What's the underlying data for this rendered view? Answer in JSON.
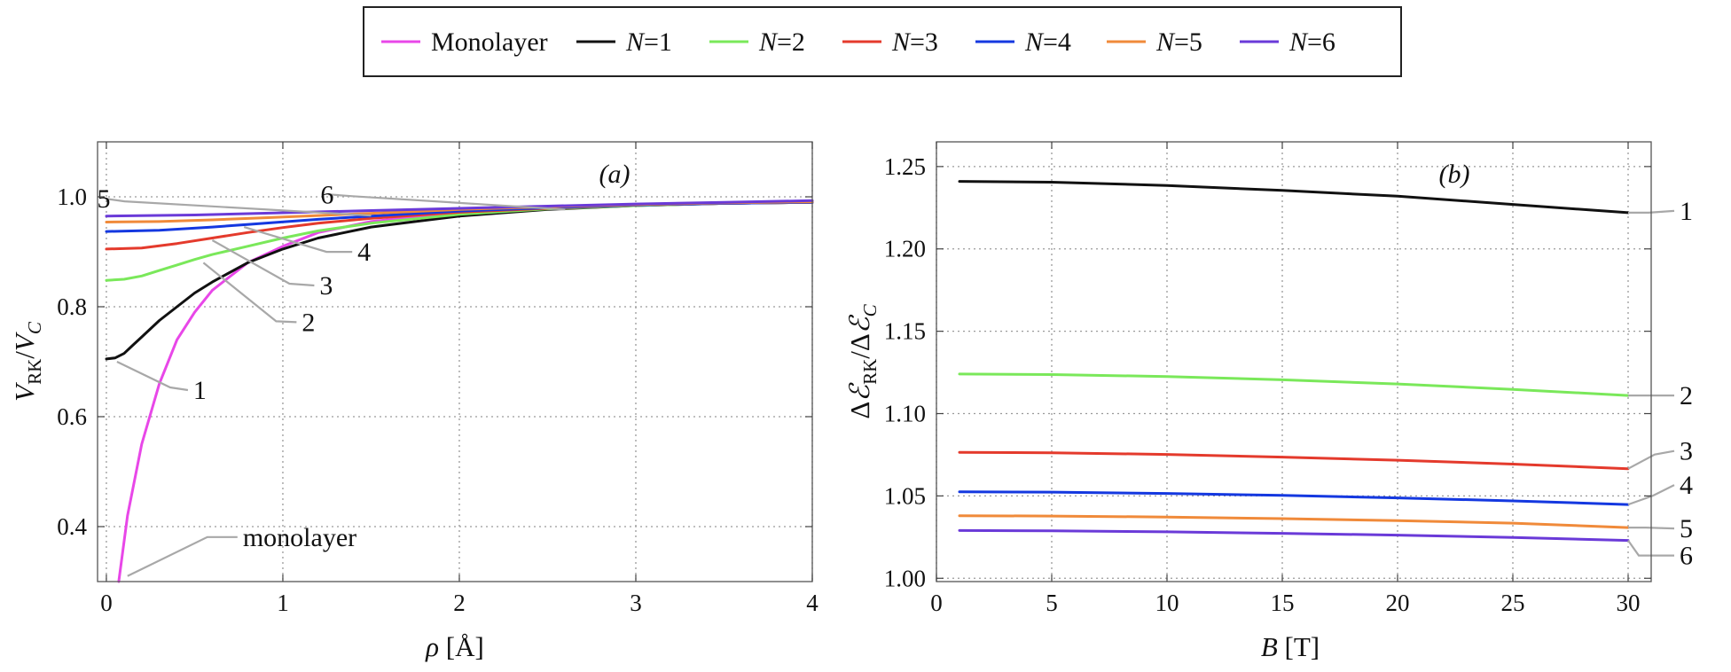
{
  "legend": {
    "entries": [
      {
        "key": "mono",
        "label": "Monolayer",
        "italic": false,
        "color": "#e847e8"
      },
      {
        "key": "1",
        "label": "N=1",
        "italic": true,
        "color": "#111111"
      },
      {
        "key": "2",
        "label": "N=2",
        "italic": true,
        "color": "#7ae85a"
      },
      {
        "key": "3",
        "label": "N=3",
        "italic": true,
        "color": "#e43a2c"
      },
      {
        "key": "4",
        "label": "N=4",
        "italic": true,
        "color": "#1438e0"
      },
      {
        "key": "5",
        "label": "N=5",
        "italic": true,
        "color": "#f08a3a"
      },
      {
        "key": "6",
        "label": "N=6",
        "italic": true,
        "color": "#6a3ad8"
      }
    ]
  },
  "chart_data": [
    {
      "panel": "a",
      "panel_label": "(a)",
      "type": "line",
      "xlabel": "ρ [Å]",
      "ylabel": "V_RK/V_C",
      "ylabel_parts": {
        "v1": "V",
        "s1": "RK",
        "slash": "/",
        "v2": "V",
        "s2": "C"
      },
      "xlim": [
        -0.05,
        4.0
      ],
      "ylim": [
        0.3,
        1.1
      ],
      "x_ticks": [
        0,
        1,
        2,
        3,
        4
      ],
      "x_tick_labels": [
        "0",
        "1",
        "2",
        "3",
        "4"
      ],
      "y_ticks": [
        0.4,
        0.6,
        0.8,
        1.0
      ],
      "y_tick_labels": [
        "0.4",
        "0.6",
        "0.8",
        "1.0"
      ],
      "grid": true,
      "series": [
        {
          "key": "mono",
          "name": "Monolayer",
          "color": "#e847e8",
          "x": [
            0.07,
            0.12,
            0.2,
            0.3,
            0.4,
            0.5,
            0.6,
            0.8,
            1.0,
            1.2,
            1.5,
            2.0,
            2.5,
            3.0,
            3.5,
            4.0
          ],
          "y": [
            0.3,
            0.42,
            0.55,
            0.66,
            0.74,
            0.79,
            0.83,
            0.88,
            0.91,
            0.935,
            0.955,
            0.972,
            0.98,
            0.985,
            0.988,
            0.99
          ]
        },
        {
          "key": "1",
          "name": "N=1",
          "color": "#111111",
          "x": [
            0.0,
            0.05,
            0.1,
            0.15,
            0.2,
            0.3,
            0.4,
            0.5,
            0.6,
            0.8,
            1.0,
            1.2,
            1.5,
            2.0,
            2.5,
            3.0,
            3.5,
            4.0
          ],
          "y": [
            0.705,
            0.707,
            0.715,
            0.73,
            0.745,
            0.775,
            0.8,
            0.825,
            0.845,
            0.88,
            0.905,
            0.925,
            0.945,
            0.965,
            0.977,
            0.984,
            0.988,
            0.99
          ]
        },
        {
          "key": "2",
          "name": "N=2",
          "color": "#7ae85a",
          "x": [
            0.0,
            0.1,
            0.2,
            0.3,
            0.4,
            0.5,
            0.6,
            0.8,
            1.0,
            1.2,
            1.5,
            2.0,
            2.5,
            3.0,
            3.5,
            4.0
          ],
          "y": [
            0.848,
            0.85,
            0.856,
            0.866,
            0.876,
            0.886,
            0.895,
            0.91,
            0.925,
            0.938,
            0.952,
            0.968,
            0.978,
            0.984,
            0.988,
            0.99
          ]
        },
        {
          "key": "3",
          "name": "N=3",
          "color": "#e43a2c",
          "x": [
            0.0,
            0.2,
            0.4,
            0.6,
            0.8,
            1.0,
            1.2,
            1.5,
            2.0,
            2.5,
            3.0,
            3.5,
            4.0
          ],
          "y": [
            0.905,
            0.907,
            0.915,
            0.925,
            0.935,
            0.944,
            0.952,
            0.961,
            0.972,
            0.979,
            0.985,
            0.988,
            0.99
          ]
        },
        {
          "key": "4",
          "name": "N=4",
          "color": "#1438e0",
          "x": [
            0.0,
            0.3,
            0.6,
            0.9,
            1.2,
            1.5,
            2.0,
            2.5,
            3.0,
            3.5,
            4.0
          ],
          "y": [
            0.937,
            0.939,
            0.945,
            0.952,
            0.959,
            0.965,
            0.974,
            0.98,
            0.985,
            0.988,
            0.99
          ]
        },
        {
          "key": "5",
          "name": "N=5",
          "color": "#f08a3a",
          "x": [
            0.0,
            0.3,
            0.6,
            0.9,
            1.2,
            1.5,
            2.0,
            2.5,
            3.0,
            3.5,
            4.0
          ],
          "y": [
            0.954,
            0.955,
            0.958,
            0.962,
            0.966,
            0.97,
            0.977,
            0.982,
            0.986,
            0.989,
            0.991
          ]
        },
        {
          "key": "6",
          "name": "N=6",
          "color": "#6a3ad8",
          "x": [
            0.0,
            0.5,
            1.0,
            1.5,
            2.0,
            2.5,
            3.0,
            3.5,
            4.0
          ],
          "y": [
            0.965,
            0.967,
            0.971,
            0.975,
            0.979,
            0.983,
            0.987,
            0.99,
            0.993
          ]
        }
      ],
      "annotations": [
        {
          "text": "monolayer",
          "series": "mono",
          "at": [
            0.12,
            0.31
          ]
        },
        {
          "text": "1",
          "series": "1",
          "at": [
            0.06,
            0.7
          ]
        },
        {
          "text": "2",
          "series": "2",
          "at": [
            0.55,
            0.88
          ]
        },
        {
          "text": "3",
          "series": "3",
          "at": [
            0.6,
            0.921
          ]
        },
        {
          "text": "4",
          "series": "4",
          "at": [
            0.78,
            0.945
          ]
        },
        {
          "text": "5",
          "series": "5",
          "at": [
            1.5,
            0.966
          ]
        },
        {
          "text": "6",
          "series": "6",
          "at": [
            2.6,
            0.977
          ]
        }
      ]
    },
    {
      "panel": "b",
      "panel_label": "(b)",
      "type": "line",
      "xlabel": "B [T]",
      "ylabel": "ΔE_RK/ΔE_C",
      "ylabel_parts": {
        "d1": "Δ",
        "v1": "ℰ",
        "s1": "RK",
        "slash": "/",
        "d2": "Δ",
        "v2": "ℰ",
        "s2": "C"
      },
      "xlim": [
        0,
        31
      ],
      "ylim": [
        0.998,
        1.265
      ],
      "x_ticks": [
        0,
        5,
        10,
        15,
        20,
        25,
        30
      ],
      "x_tick_labels": [
        "0",
        "5",
        "10",
        "15",
        "20",
        "25",
        "30"
      ],
      "y_ticks": [
        1.0,
        1.05,
        1.1,
        1.15,
        1.2,
        1.25
      ],
      "y_tick_labels": [
        "1.00",
        "1.05",
        "1.10",
        "1.15",
        "1.20",
        "1.25"
      ],
      "grid": true,
      "series": [
        {
          "key": "1",
          "name": "N=1",
          "color": "#111111",
          "x": [
            1,
            5,
            10,
            15,
            20,
            25,
            30
          ],
          "y": [
            1.241,
            1.2405,
            1.2385,
            1.2355,
            1.232,
            1.227,
            1.222
          ]
        },
        {
          "key": "2",
          "name": "N=2",
          "color": "#7ae85a",
          "x": [
            1,
            5,
            10,
            15,
            20,
            25,
            30
          ],
          "y": [
            1.124,
            1.1237,
            1.1225,
            1.1205,
            1.118,
            1.1147,
            1.111
          ]
        },
        {
          "key": "3",
          "name": "N=3",
          "color": "#e43a2c",
          "x": [
            1,
            5,
            10,
            15,
            20,
            25,
            30
          ],
          "y": [
            1.0765,
            1.0762,
            1.0752,
            1.0736,
            1.0717,
            1.0693,
            1.0665
          ]
        },
        {
          "key": "4",
          "name": "N=4",
          "color": "#1438e0",
          "x": [
            1,
            5,
            10,
            15,
            20,
            25,
            30
          ],
          "y": [
            1.0525,
            1.0523,
            1.0515,
            1.0503,
            1.0488,
            1.047,
            1.0448
          ]
        },
        {
          "key": "5",
          "name": "N=5",
          "color": "#f08a3a",
          "x": [
            1,
            5,
            10,
            15,
            20,
            25,
            30
          ],
          "y": [
            1.038,
            1.0378,
            1.0372,
            1.0362,
            1.035,
            1.0335,
            1.0308
          ]
        },
        {
          "key": "6",
          "name": "N=6",
          "color": "#6a3ad8",
          "x": [
            1,
            5,
            10,
            15,
            20,
            25,
            30
          ],
          "y": [
            1.029,
            1.0288,
            1.0282,
            1.0273,
            1.0262,
            1.0248,
            1.023
          ]
        }
      ],
      "annotations": [
        {
          "text": "1",
          "series": "1",
          "at": [
            30,
            1.222
          ]
        },
        {
          "text": "2",
          "series": "2",
          "at": [
            30,
            1.111
          ]
        },
        {
          "text": "3",
          "series": "3",
          "at": [
            30,
            1.0665
          ]
        },
        {
          "text": "4",
          "series": "4",
          "at": [
            30,
            1.0448
          ]
        },
        {
          "text": "5",
          "series": "5",
          "at": [
            30,
            1.0308
          ]
        },
        {
          "text": "6",
          "series": "6",
          "at": [
            30,
            1.023
          ]
        }
      ]
    }
  ]
}
